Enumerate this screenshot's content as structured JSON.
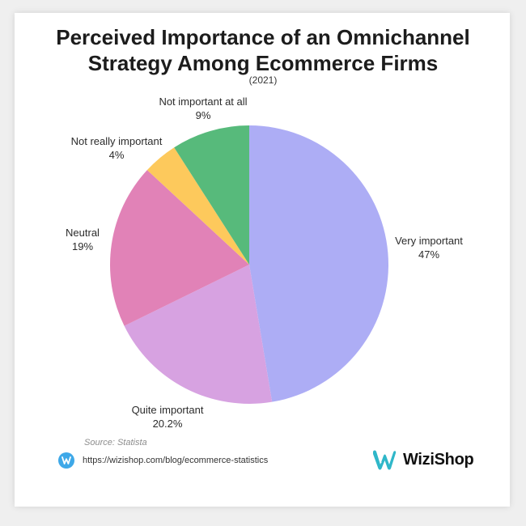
{
  "chart_data": {
    "type": "pie",
    "title": "Perceived Importance of an Omnichannel Strategy Among Ecommerce Firms",
    "title_lines": [
      "Perceived Importance of an Omnichannel",
      "Strategy Among Ecommerce Firms"
    ],
    "subtitle": "(2021)",
    "slices": [
      {
        "label": "Very important",
        "value": 47,
        "value_label": "47%",
        "color": "#adadf5"
      },
      {
        "label": "Quite important",
        "value": 20.2,
        "value_label": "20.2%",
        "color": "#d7a2e1"
      },
      {
        "label": "Neutral",
        "value": 19,
        "value_label": "19%",
        "color": "#e182b7"
      },
      {
        "label": "Not really important",
        "value": 4,
        "value_label": "4%",
        "color": "#fdc95c"
      },
      {
        "label": "Not important at all",
        "value": 9,
        "value_label": "9%",
        "color": "#57ba7b"
      }
    ]
  },
  "footer": {
    "source": "Source: Statista",
    "url": "https://wizishop.com/blog/ecommerce-statistics",
    "url_icon": "wizishop-w-icon",
    "brand": "WiziShop"
  },
  "colors": {
    "brand_blue": "#3ea8e8",
    "brand_teal": "#2fb7c9"
  }
}
